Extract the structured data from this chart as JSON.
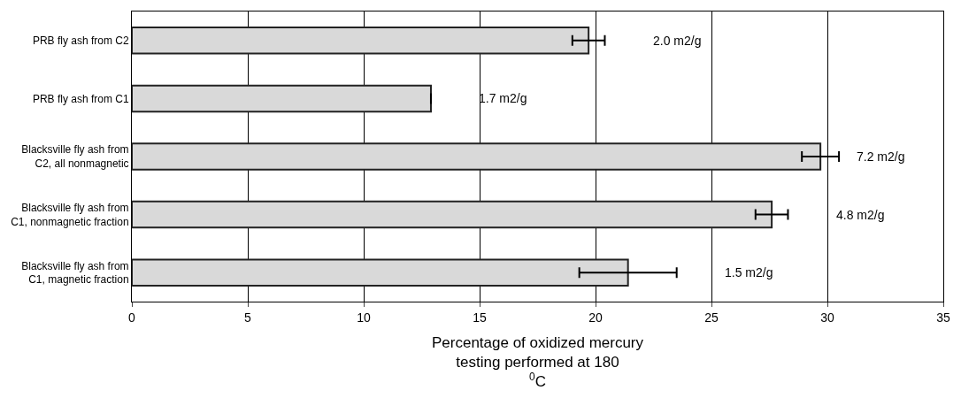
{
  "chart_data": {
    "type": "bar",
    "orientation": "horizontal",
    "categories": [
      "PRB fly ash from C2",
      "PRB fly ash from C1",
      "Blacksville fly ash from C2, all nonmagnetic",
      "Blacksville fly ash from C1, nonmagnetic fraction",
      "Blacksville fly ash from C1, magnetic fraction"
    ],
    "values": [
      19.7,
      12.9,
      29.7,
      27.6,
      21.4
    ],
    "errors": [
      0.7,
      null,
      0.8,
      0.7,
      2.1
    ],
    "color": "#d9d9d9",
    "xlabel": "Percentage of oxidized mercury testing performed at 180 $^{0}$C",
    "xlim": [
      0,
      35
    ],
    "xticks": [
      0,
      5,
      10,
      15,
      20,
      25,
      30,
      35
    ],
    "grid": "x",
    "annotations": [
      "2.0 m2/g",
      "1.7 m2/g",
      "7.2 m2/g",
      "4.8 m2/g",
      "1.5 m2/g"
    ]
  }
}
